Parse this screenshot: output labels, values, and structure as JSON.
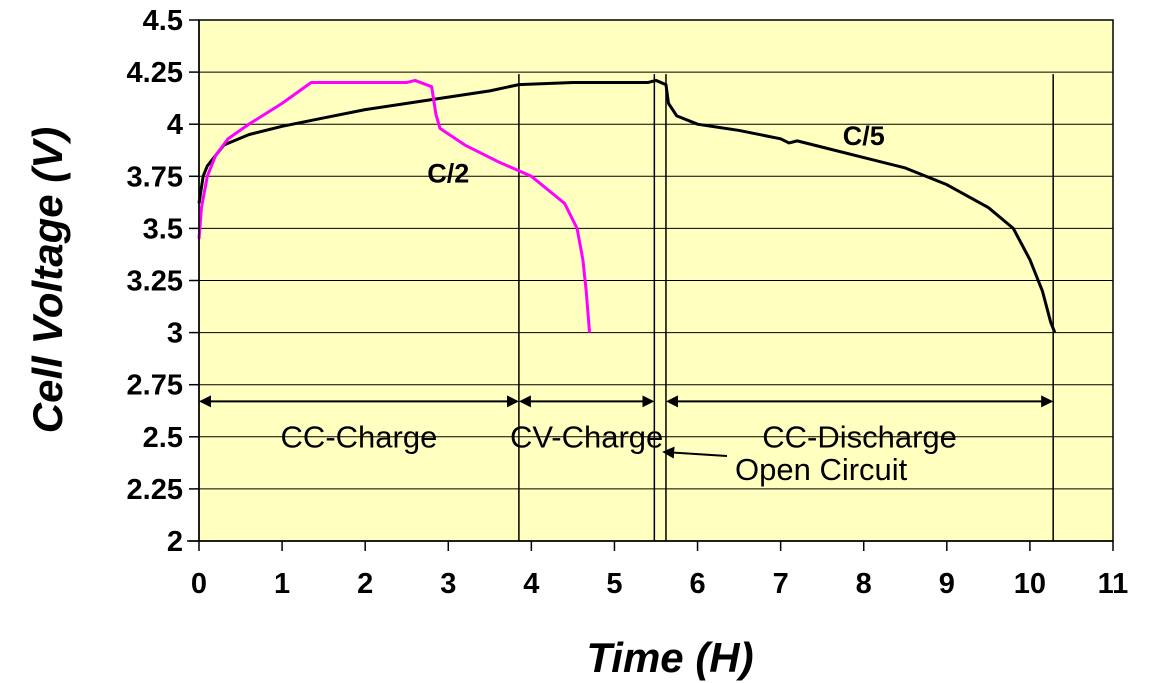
{
  "chart_data": {
    "type": "line",
    "xlabel": "Time (H)",
    "ylabel": "Cell Voltage (V)",
    "xlim": [
      0,
      11
    ],
    "ylim": [
      2,
      4.5
    ],
    "x_ticks": [
      "0",
      "1",
      "2",
      "3",
      "4",
      "5",
      "6",
      "7",
      "8",
      "9",
      "10",
      "11"
    ],
    "y_ticks": [
      "2",
      "2.25",
      "2.5",
      "2.75",
      "3",
      "3.25",
      "3.5",
      "3.75",
      "4",
      "4.25",
      "4.5"
    ],
    "plot_background": "#FFFFC0",
    "grid": "horizontal",
    "series": [
      {
        "name": "C/5",
        "color": "#000000",
        "points": [
          [
            0.0,
            3.62
          ],
          [
            0.05,
            3.75
          ],
          [
            0.1,
            3.8
          ],
          [
            0.3,
            3.9
          ],
          [
            0.6,
            3.95
          ],
          [
            1.0,
            3.99
          ],
          [
            1.5,
            4.03
          ],
          [
            2.0,
            4.07
          ],
          [
            2.5,
            4.1
          ],
          [
            3.0,
            4.13
          ],
          [
            3.5,
            4.16
          ],
          [
            3.85,
            4.19
          ],
          [
            4.5,
            4.2
          ],
          [
            5.0,
            4.2
          ],
          [
            5.4,
            4.2
          ],
          [
            5.5,
            4.21
          ],
          [
            5.62,
            4.19
          ],
          [
            5.65,
            4.1
          ],
          [
            5.75,
            4.04
          ],
          [
            6.0,
            4.0
          ],
          [
            6.5,
            3.97
          ],
          [
            7.0,
            3.93
          ],
          [
            7.1,
            3.91
          ],
          [
            7.2,
            3.92
          ],
          [
            7.5,
            3.89
          ],
          [
            8.0,
            3.84
          ],
          [
            8.5,
            3.79
          ],
          [
            9.0,
            3.71
          ],
          [
            9.5,
            3.6
          ],
          [
            9.8,
            3.5
          ],
          [
            10.0,
            3.35
          ],
          [
            10.15,
            3.2
          ],
          [
            10.25,
            3.05
          ],
          [
            10.3,
            3.0
          ]
        ]
      },
      {
        "name": "C/2",
        "color": "#FF00FF",
        "points": [
          [
            0.0,
            3.45
          ],
          [
            0.03,
            3.6
          ],
          [
            0.1,
            3.75
          ],
          [
            0.2,
            3.85
          ],
          [
            0.35,
            3.93
          ],
          [
            0.6,
            4.0
          ],
          [
            1.0,
            4.1
          ],
          [
            1.35,
            4.2
          ],
          [
            2.0,
            4.2
          ],
          [
            2.5,
            4.2
          ],
          [
            2.6,
            4.21
          ],
          [
            2.8,
            4.18
          ],
          [
            2.85,
            4.05
          ],
          [
            2.9,
            3.98
          ],
          [
            3.2,
            3.9
          ],
          [
            3.6,
            3.82
          ],
          [
            4.0,
            3.75
          ],
          [
            4.4,
            3.62
          ],
          [
            4.55,
            3.5
          ],
          [
            4.62,
            3.35
          ],
          [
            4.66,
            3.2
          ],
          [
            4.69,
            3.05
          ],
          [
            4.7,
            3.0
          ]
        ]
      }
    ],
    "series_labels": [
      {
        "text": "C/2",
        "x": 3.0,
        "y": 3.72
      },
      {
        "text": "C/5",
        "x": 8.0,
        "y": 3.9
      }
    ],
    "vertical_lines": [
      3.85,
      5.48,
      5.62,
      10.28
    ],
    "phase_arrows": [
      {
        "label": "CC-Charge",
        "x_start": 0.0,
        "x_end": 3.85,
        "y": 2.67
      },
      {
        "label": "CV-Charge",
        "x_start": 3.85,
        "x_end": 5.48,
        "y": 2.67
      },
      {
        "label": "CC-Discharge",
        "x_start": 5.62,
        "x_end": 10.28,
        "y": 2.67
      }
    ],
    "annotations": [
      {
        "text": "Open Circuit",
        "points_to_x": 5.55,
        "y": 2.36
      }
    ]
  }
}
